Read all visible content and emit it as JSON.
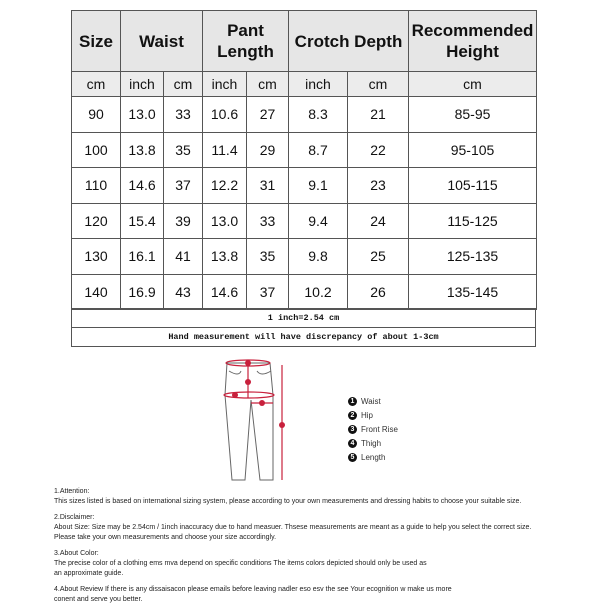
{
  "table": {
    "headers": [
      "Size",
      "Waist",
      "Pant Length",
      "Crotch Depth",
      "Recommended Height"
    ],
    "units": [
      "cm",
      "inch",
      "cm",
      "inch",
      "cm",
      "inch",
      "cm",
      "cm"
    ],
    "rows": [
      [
        "90",
        "13.0",
        "33",
        "10.6",
        "27",
        "8.3",
        "21",
        "85-95"
      ],
      [
        "100",
        "13.8",
        "35",
        "11.4",
        "29",
        "8.7",
        "22",
        "95-105"
      ],
      [
        "110",
        "14.6",
        "37",
        "12.2",
        "31",
        "9.1",
        "23",
        "105-115"
      ],
      [
        "120",
        "15.4",
        "39",
        "13.0",
        "33",
        "9.4",
        "24",
        "115-125"
      ],
      [
        "130",
        "16.1",
        "41",
        "13.8",
        "35",
        "9.8",
        "25",
        "125-135"
      ],
      [
        "140",
        "16.9",
        "43",
        "14.6",
        "37",
        "10.2",
        "26",
        "135-145"
      ]
    ],
    "conversion": "1 inch=2.54 cm",
    "discrepancy": "Hand measurement will have discrepancy of about 1-3cm"
  },
  "legend": [
    {
      "num": "1",
      "label": "Waist"
    },
    {
      "num": "2",
      "label": "Hip"
    },
    {
      "num": "3",
      "label": "Front Rise"
    },
    {
      "num": "4",
      "label": "Thigh"
    },
    {
      "num": "5",
      "label": "Length"
    }
  ],
  "accent": "#c8203c",
  "notes": [
    {
      "title": "1.Attention:",
      "lines": [
        "This sizes listed is based on international sizing system, please according to your own measurements and dressing habits to choose your suitable size."
      ]
    },
    {
      "title": "2.Disclaimer:",
      "lines": [
        "About Size: Size may be 2.54cm / 1inch inaccuracy due to hand measuer. Thsese measurements are meant as a guide to help you select the correct size.",
        "Please take your own measurements and choose your size accordingly."
      ]
    },
    {
      "title": "3.About Color:",
      "lines": [
        "The precise color of a clothing ems mva depend on specific conditions The items colors depicted should only be used as",
        "an approximate guide."
      ]
    },
    {
      "title": "",
      "lines": [
        "4.About Review If there is any dissaisacon please emails before leaving nadler eso esv the see Your ecognition w make us more",
        "conent and serve you better."
      ]
    }
  ]
}
